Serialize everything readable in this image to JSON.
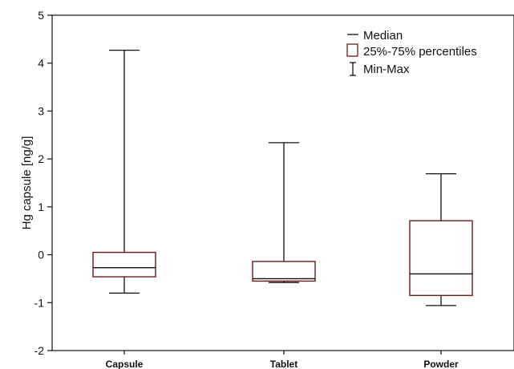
{
  "chart_data": {
    "type": "box",
    "title": "",
    "xlabel": "",
    "ylabel": "Hg capsule [ng/g]",
    "ylim": [
      -2,
      5
    ],
    "yticks": [
      "-2",
      "-1",
      "0",
      "1",
      "2",
      "3",
      "4",
      "5"
    ],
    "grid": false,
    "legend_position": "top-right",
    "box_edge_color": "#6b1a1a",
    "line_color": "#111111",
    "legend": {
      "median": "Median",
      "box": "25%-75% percentiles",
      "whisker": "Min-Max"
    },
    "categories": [
      "Capsule",
      "Tablet",
      "Powder"
    ],
    "boxes": [
      {
        "label": "Capsule",
        "min": -0.8,
        "q1": -0.46,
        "median": -0.27,
        "q3": 0.05,
        "max": 4.27
      },
      {
        "label": "Tablet",
        "min": -0.58,
        "q1": -0.55,
        "median": -0.5,
        "q3": -0.14,
        "max": 2.34
      },
      {
        "label": "Powder",
        "min": -1.06,
        "q1": -0.85,
        "median": -0.4,
        "q3": 0.71,
        "max": 1.69
      }
    ]
  }
}
